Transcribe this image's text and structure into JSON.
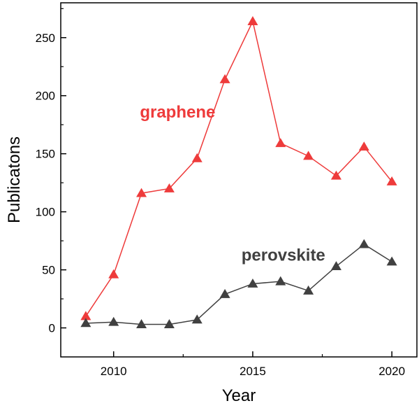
{
  "chart_data": {
    "type": "line",
    "title": "",
    "xlabel": "Year",
    "ylabel": "Publicatons",
    "xlim": [
      2008.1,
      2020.9
    ],
    "ylim": [
      -25,
      280
    ],
    "x_ticks": [
      2010,
      2015,
      2020
    ],
    "y_ticks": [
      0,
      50,
      100,
      150,
      200,
      250
    ],
    "x_minor_step": 2.5,
    "y_minor_step": 25,
    "grid": false,
    "legend": "none",
    "x": [
      2009,
      2010,
      2011,
      2012,
      2013,
      2014,
      2015,
      2016,
      2017,
      2018,
      2019,
      2020
    ],
    "series": [
      {
        "name": "graphene",
        "color": "#ee3b3b",
        "marker": "triangle",
        "label_position": [
          2012.3,
          181
        ],
        "values": [
          10,
          46,
          116,
          120,
          146,
          214,
          264,
          159,
          148,
          131,
          156,
          126
        ]
      },
      {
        "name": "perovskite",
        "color": "#404040",
        "marker": "triangle",
        "label_position": [
          2016.1,
          58
        ],
        "values": [
          4,
          5,
          3,
          3,
          7,
          29,
          38,
          40,
          32,
          53,
          72,
          57
        ]
      }
    ]
  }
}
